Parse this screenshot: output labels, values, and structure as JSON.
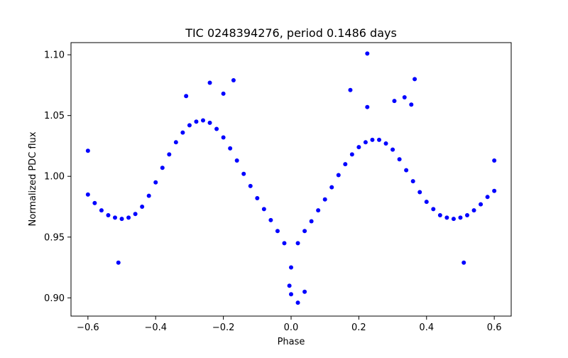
{
  "chart_data": {
    "type": "scatter",
    "title": "TIC 0248394276, period 0.1486 days",
    "xlabel": "Phase",
    "ylabel": "Normalized PDC flux",
    "xlim": [
      -0.65,
      0.65
    ],
    "ylim": [
      0.885,
      1.11
    ],
    "xticks": [
      -0.6,
      -0.4,
      -0.2,
      0.0,
      0.2,
      0.4,
      0.6
    ],
    "xtick_labels": [
      "−0.6",
      "−0.4",
      "−0.2",
      "0.0",
      "0.2",
      "0.4",
      "0.6"
    ],
    "yticks": [
      0.9,
      0.95,
      1.0,
      1.05,
      1.1
    ],
    "ytick_labels": [
      "0.90",
      "0.95",
      "1.00",
      "1.05",
      "1.10"
    ],
    "grid": false,
    "legend": "none",
    "marker_color": "#0000ff",
    "series": [
      {
        "x": [
          -0.6,
          -0.58,
          -0.56,
          -0.54,
          -0.52,
          -0.5,
          -0.48,
          -0.46,
          -0.44,
          -0.42,
          -0.4,
          -0.38,
          -0.36,
          -0.34,
          -0.32,
          -0.3,
          -0.28,
          -0.26,
          -0.24,
          -0.22,
          -0.2,
          -0.18,
          -0.16,
          -0.14,
          -0.12,
          -0.1,
          -0.08,
          -0.06,
          -0.04,
          -0.02,
          0.0,
          0.02,
          0.04,
          0.06,
          0.08,
          0.1,
          0.12,
          0.14,
          0.16,
          0.18,
          0.2,
          0.22,
          0.24,
          0.26,
          0.28,
          0.3,
          0.32,
          0.34,
          0.36,
          0.38,
          0.4,
          0.42,
          0.44,
          0.46,
          0.48,
          0.5,
          0.52,
          0.54,
          0.56,
          0.58,
          0.6
        ],
        "y": [
          0.985,
          0.978,
          0.972,
          0.968,
          0.966,
          0.965,
          0.966,
          0.969,
          0.975,
          0.984,
          0.995,
          1.007,
          1.018,
          1.028,
          1.036,
          1.042,
          1.045,
          1.046,
          1.044,
          1.039,
          1.032,
          1.023,
          1.013,
          1.002,
          0.992,
          0.982,
          0.973,
          0.964,
          0.955,
          0.945,
          0.925,
          0.945,
          0.955,
          0.963,
          0.972,
          0.981,
          0.991,
          1.001,
          1.01,
          1.018,
          1.024,
          1.028,
          1.03,
          1.03,
          1.027,
          1.022,
          1.014,
          1.005,
          0.996,
          0.987,
          0.979,
          0.973,
          0.968,
          0.966,
          0.965,
          0.966,
          0.968,
          0.972,
          0.977,
          0.983,
          0.988
        ]
      }
    ],
    "outliers": {
      "x": [
        0.225,
        0.365,
        0.175,
        0.335,
        0.305,
        0.225,
        0.355,
        -0.6,
        0.6,
        -0.51,
        0.51,
        0.02,
        0.0,
        0.04,
        -0.005,
        -0.24,
        -0.2,
        -0.17,
        -0.31
      ],
      "y": [
        1.101,
        1.08,
        1.071,
        1.065,
        1.062,
        1.057,
        1.059,
        1.021,
        1.013,
        0.929,
        0.929,
        0.896,
        0.903,
        0.905,
        0.91,
        1.077,
        1.068,
        1.079,
        1.066
      ]
    }
  }
}
